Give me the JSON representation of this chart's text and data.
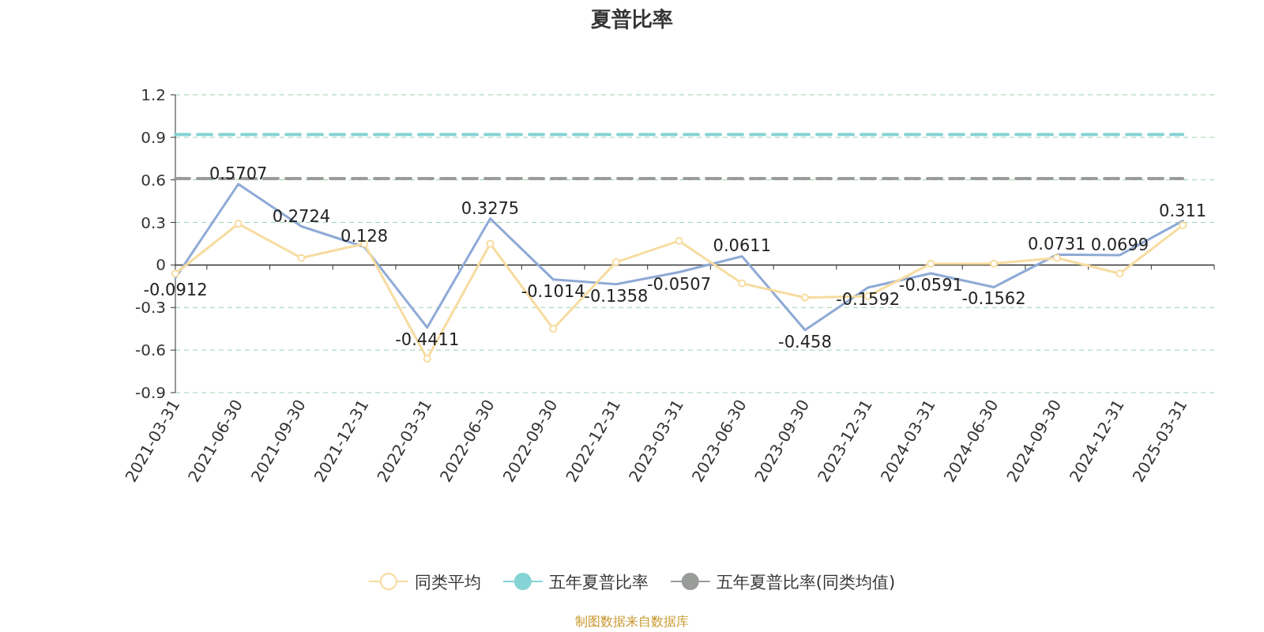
{
  "chart_data": {
    "type": "line",
    "title": "夏普比率",
    "categories": [
      "2021-03-31",
      "2021-06-30",
      "2021-09-30",
      "2021-12-31",
      "2022-03-31",
      "2022-06-30",
      "2022-09-30",
      "2022-12-31",
      "2023-03-31",
      "2023-06-30",
      "2023-09-30",
      "2023-12-31",
      "2024-03-31",
      "2024-06-30",
      "2024-09-30",
      "2024-12-31",
      "2025-03-31"
    ],
    "series": [
      {
        "color": "#8eaad6",
        "marker": "none",
        "values": [
          -0.0912,
          0.5707,
          0.2724,
          0.128,
          -0.4411,
          0.3275,
          -0.1014,
          -0.1358,
          -0.0507,
          0.0611,
          -0.458,
          -0.1592,
          -0.0591,
          -0.1562,
          0.0731,
          0.0699,
          0.311
        ],
        "value_labels": [
          "-0.0912",
          "0.5707",
          "0.2724",
          "0.128",
          "-0.4411",
          "0.3275",
          "-0.1014",
          "-0.1358",
          "-0.0507",
          "0.0611",
          "-0.458",
          "-0.1592",
          "-0.0591",
          "-0.1562",
          "0.0731",
          "0.0699",
          "0.311"
        ]
      },
      {
        "name": "同类平均",
        "color": "#f7dca0",
        "marker": "circle",
        "values": [
          -0.06,
          0.29,
          0.05,
          0.15,
          -0.66,
          0.15,
          -0.45,
          0.02,
          0.17,
          -0.13,
          -0.23,
          -0.22,
          0.01,
          0.01,
          0.05,
          -0.06,
          0.28
        ]
      },
      {
        "name": "五年夏普比率",
        "color": "#85d3d5",
        "marker": "none",
        "line_style": "dashed",
        "values": [
          0.92,
          0.92,
          0.92,
          0.92,
          0.92,
          0.92,
          0.92,
          0.92,
          0.92,
          0.92,
          0.92,
          0.92,
          0.92,
          0.92,
          0.92,
          0.92,
          0.92
        ]
      },
      {
        "name": "五年夏普比率(同类均值)",
        "color": "#999c99",
        "marker": "none",
        "line_style": "dashed",
        "values": [
          0.61,
          0.61,
          0.61,
          0.61,
          0.61,
          0.61,
          0.61,
          0.61,
          0.61,
          0.61,
          0.61,
          0.61,
          0.61,
          0.61,
          0.61,
          0.61,
          0.61
        ]
      }
    ],
    "ylim": [
      -0.9,
      1.2
    ],
    "yticks": [
      -0.9,
      -0.6,
      -0.3,
      0,
      0.3,
      0.6,
      0.9,
      1.2
    ],
    "grid": "y",
    "legend": "bottom",
    "annotations": [
      "制图数据来自数据库"
    ]
  }
}
